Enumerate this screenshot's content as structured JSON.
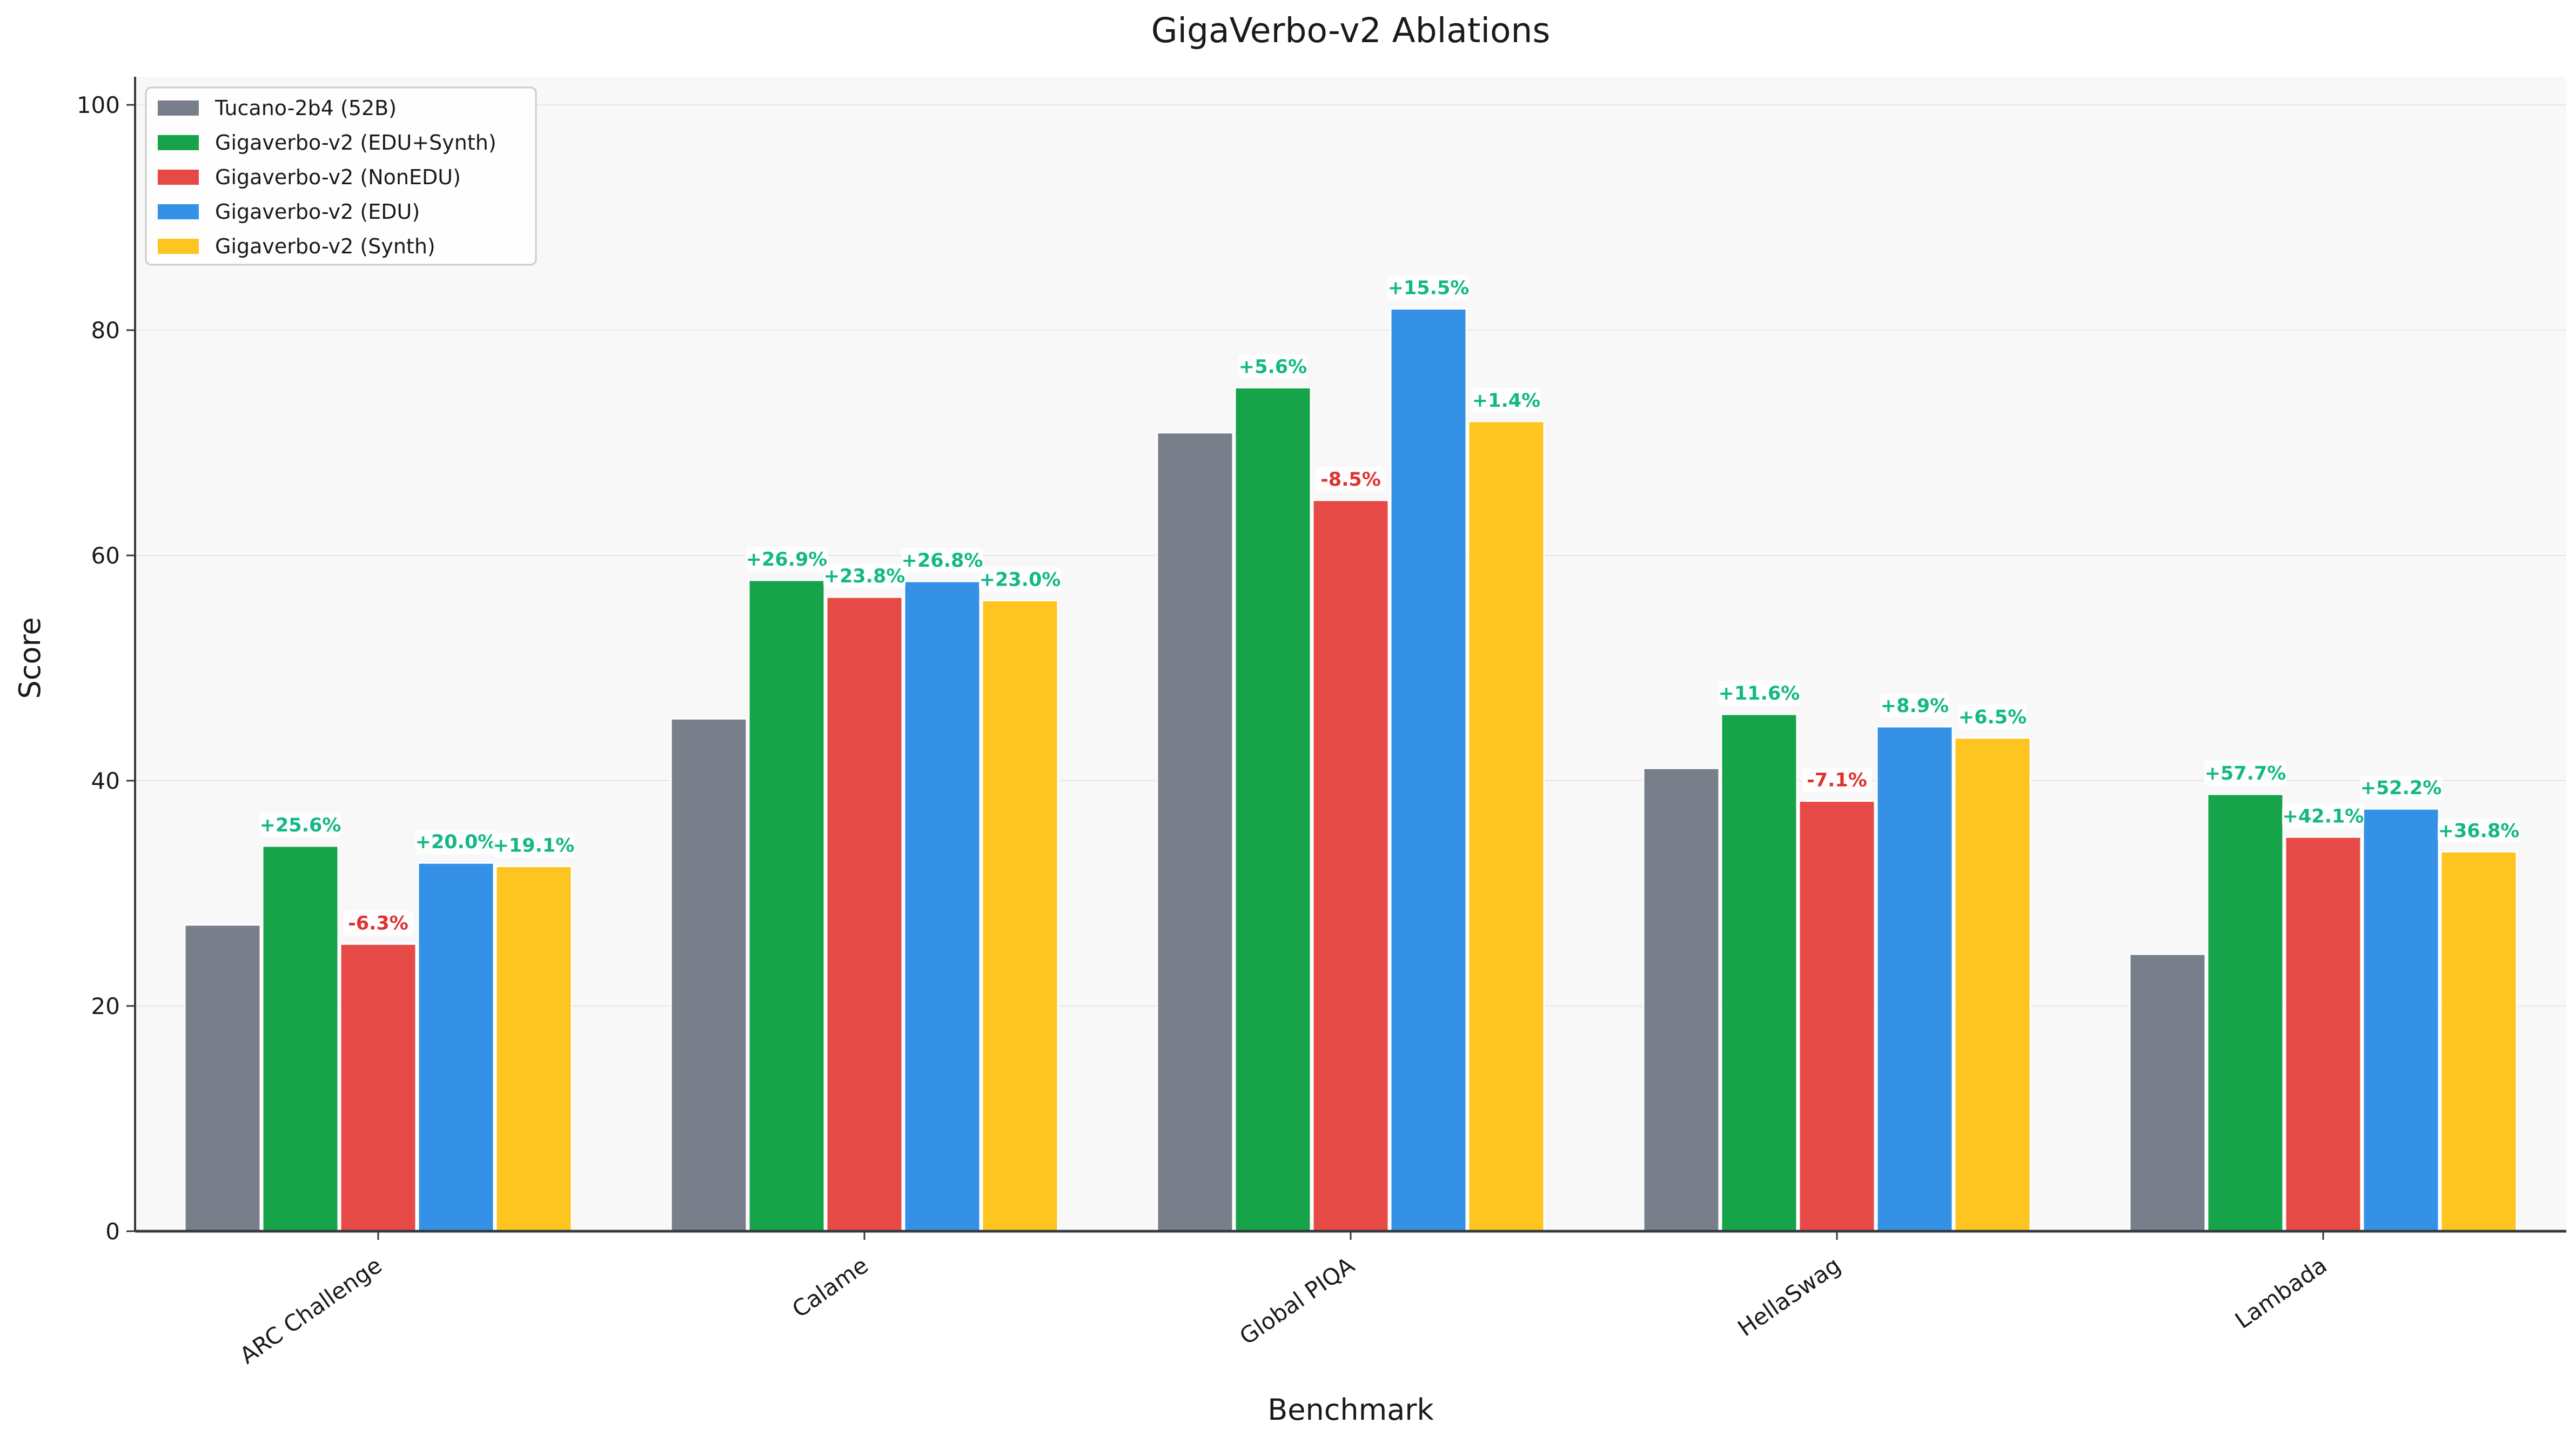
{
  "chart_data": {
    "type": "bar",
    "title": "GigaVerbo-v2 Ablations",
    "xlabel": "Benchmark",
    "ylabel": "Score",
    "ylim": [
      0,
      102.5
    ],
    "yticks": [
      0,
      20,
      40,
      60,
      80,
      100
    ],
    "grid": true,
    "legend_position": "top-left",
    "categories": [
      "ARC Challenge",
      "Calame",
      "Global PIQA",
      "HellaSwag",
      "Lambada"
    ],
    "series": [
      {
        "name": "Tucano-2b4 (52B)",
        "color": "#787e8a",
        "values": [
          27.2,
          45.5,
          70.9,
          41.1,
          24.6
        ],
        "labels": [
          "",
          "",
          "",
          "",
          ""
        ]
      },
      {
        "name": "Gigaverbo-v2 (EDU+Synth)",
        "color": "#17a34a",
        "values": [
          34.2,
          57.8,
          74.9,
          45.9,
          38.8
        ],
        "labels": [
          "+25.6%",
          "+26.9%",
          "+5.6%",
          "+11.6%",
          "+57.7%"
        ]
      },
      {
        "name": "Gigaverbo-v2 (NonEDU)",
        "color": "#e64a47",
        "values": [
          25.5,
          56.3,
          64.9,
          38.2,
          35.0
        ],
        "labels": [
          "-6.3%",
          "+23.8%",
          "-8.5%",
          "-7.1%",
          "+42.1%"
        ]
      },
      {
        "name": "Gigaverbo-v2 (EDU)",
        "color": "#3591e6",
        "values": [
          32.7,
          57.7,
          81.9,
          44.8,
          37.5
        ],
        "labels": [
          "+20.0%",
          "+26.8%",
          "+15.5%",
          "+8.9%",
          "+52.2%"
        ]
      },
      {
        "name": "Gigaverbo-v2 (Synth)",
        "color": "#fec41f",
        "values": [
          32.4,
          56.0,
          71.9,
          43.8,
          33.7
        ],
        "labels": [
          "+19.1%",
          "+23.0%",
          "+1.4%",
          "+6.5%",
          "+36.8%"
        ]
      }
    ],
    "label_colors": {
      "positive": "#12b886",
      "negative": "#e03131"
    }
  }
}
